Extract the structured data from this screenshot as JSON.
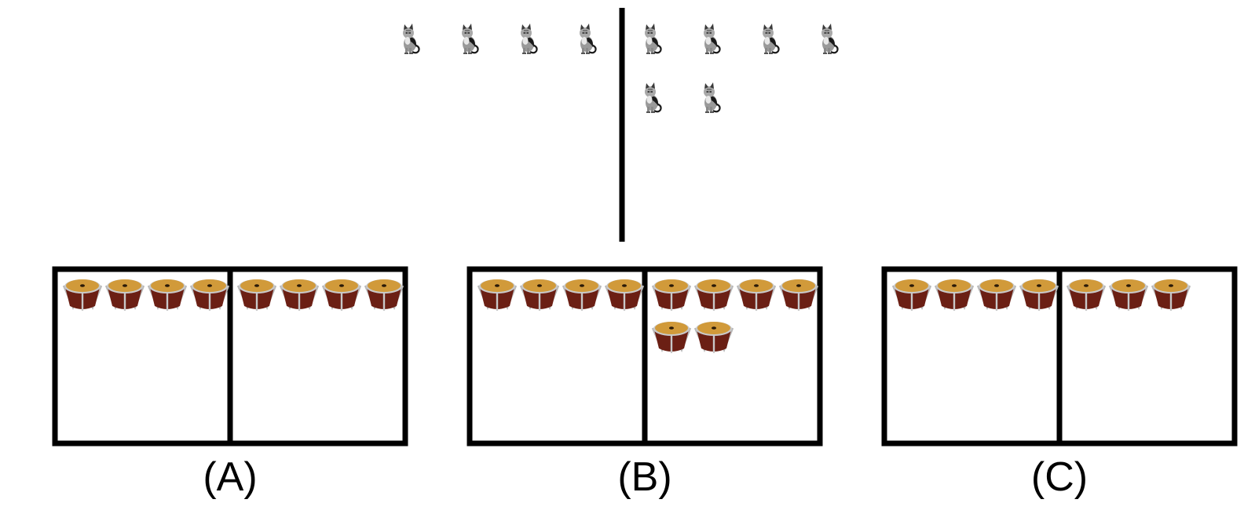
{
  "model": {
    "icon": "cat-icon",
    "left_count": 4,
    "right_count": 6
  },
  "options": [
    {
      "label": "(A)",
      "icon": "drum-icon",
      "left_count": 4,
      "right_count": 4
    },
    {
      "label": "(B)",
      "icon": "drum-icon",
      "left_count": 4,
      "right_count": 6
    },
    {
      "label": "(C)",
      "icon": "drum-icon",
      "left_count": 4,
      "right_count": 3
    }
  ],
  "colors": {
    "divider": "#000000",
    "drum_head": "#d19a3a",
    "drum_shell": "#6b1f14",
    "drum_rim": "#b8b8b8",
    "cat_body": "#9a9a9a",
    "cat_dark": "#1a1a1a"
  }
}
